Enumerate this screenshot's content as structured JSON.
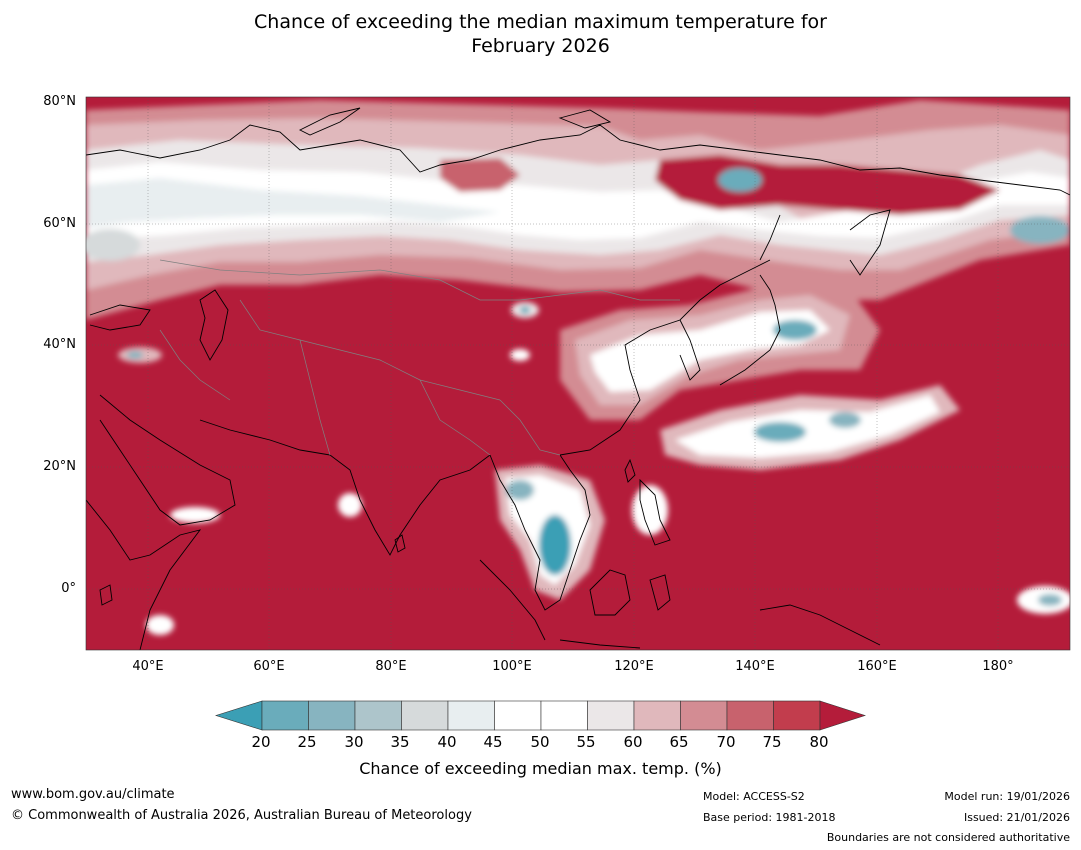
{
  "title": {
    "line1": "Chance of exceeding the median maximum temperature for",
    "line2": "February 2026"
  },
  "map": {
    "lat_labels": [
      "80°N",
      "60°N",
      "40°N",
      "20°N",
      "0°"
    ],
    "lon_labels": [
      "40°E",
      "60°E",
      "80°E",
      "100°E",
      "120°E",
      "140°E",
      "160°E",
      "180°"
    ],
    "extent": {
      "lon_min": 30,
      "lon_max": 192,
      "lat_min": -10,
      "lat_max": 80
    },
    "colors": {
      "ocean_high": "#b41c3a",
      "band_75": "#c23d4d",
      "band_70": "#c8626d",
      "band_65": "#d38c93",
      "band_60": "#e0b8bc",
      "band_55": "#ebe7e8",
      "band_45": "#ffffff",
      "band_40": "#e8eef0",
      "band_35": "#d6dadb",
      "band_30": "#adc5cb",
      "band_25": "#87b4c0",
      "band_20": "#6aacbb",
      "low": "#3b9fb5"
    }
  },
  "colorbar": {
    "ticks": [
      "20",
      "25",
      "30",
      "35",
      "40",
      "45",
      "50",
      "55",
      "60",
      "65",
      "70",
      "75",
      "80"
    ],
    "colors": [
      "#6aacbb",
      "#87b4c0",
      "#adc5cb",
      "#d6dadb",
      "#e8eef0",
      "#ffffff",
      "#ffffff",
      "#ebe7e8",
      "#e0b8bc",
      "#d38c93",
      "#c8626d",
      "#c23d4d"
    ],
    "low_extend_color": "#3b9fb5",
    "high_extend_color": "#b41c3a",
    "label": "Chance of exceeding median max. temp. (%)"
  },
  "footer": {
    "website": "www.bom.gov.au/climate",
    "copyright": "© Commonwealth of Australia 2026, Australian Bureau of Meteorology",
    "model": "Model: ACCESS-S2",
    "base_period": "Base period: 1981-2018",
    "model_run": "Model run: 19/01/2026",
    "issued": "Issued: 21/01/2026",
    "boundaries_note": "Boundaries are not considered authoritative"
  }
}
